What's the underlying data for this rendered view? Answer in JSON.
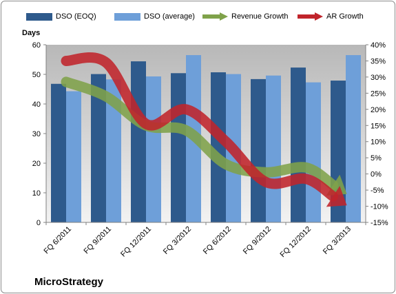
{
  "chart_data": {
    "type": "bar",
    "brand": "MicroStrategy",
    "categories": [
      "FQ 6/2011",
      "FQ 9/2011",
      "FQ 12/2011",
      "FQ 3/2012",
      "FQ 6/2012",
      "FQ 9/2012",
      "FQ 12/2012",
      "FQ 3/2013"
    ],
    "ylabel": "Days",
    "ylim": [
      0,
      60
    ],
    "yticks": [
      0,
      10,
      20,
      30,
      40,
      50,
      60
    ],
    "y2lim": [
      -15,
      40
    ],
    "y2ticks": [
      "-15%",
      "-10%",
      "-5%",
      "0%",
      "5%",
      "10%",
      "15%",
      "20%",
      "25%",
      "30%",
      "35%",
      "40%"
    ],
    "grid": false,
    "legend_position": "top",
    "series": [
      {
        "name": "DSO (EOQ)",
        "kind": "bar",
        "axis": "left",
        "color": "#2e5a8c",
        "values": [
          46.8,
          50.1,
          54.4,
          50.4,
          50.7,
          48.4,
          52.3,
          47.9
        ]
      },
      {
        "name": "DSO (average)",
        "kind": "bar",
        "axis": "left",
        "color": "#6e9fd9",
        "values": [
          44.3,
          48.3,
          49.3,
          56.5,
          50.1,
          49.6,
          47.3,
          56.5
        ]
      },
      {
        "name": "Revenue Growth",
        "kind": "arrow-line",
        "axis": "right",
        "color": "#7fa24a",
        "values": [
          28.5,
          24.0,
          15.0,
          13.5,
          3.0,
          0.5,
          2.0,
          -6.0
        ]
      },
      {
        "name": "AR Growth",
        "kind": "arrow-line",
        "axis": "right",
        "color": "#c0242b",
        "values": [
          35.0,
          34.5,
          15.5,
          20.0,
          10.0,
          -2.5,
          -1.5,
          -9.5
        ]
      }
    ]
  }
}
